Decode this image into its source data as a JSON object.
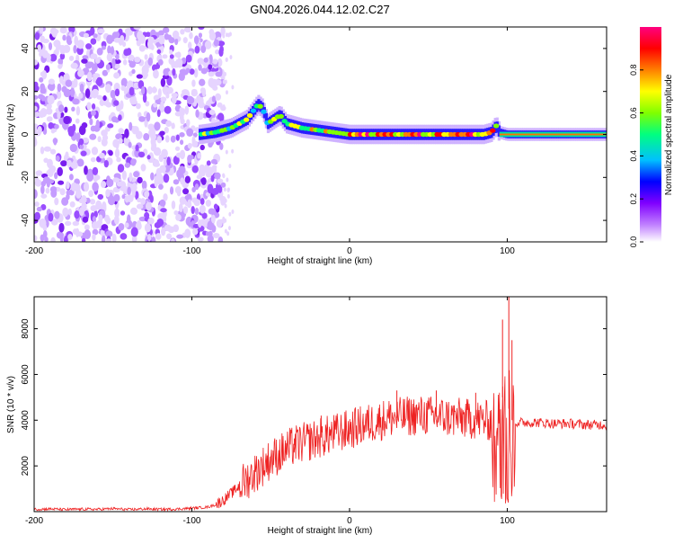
{
  "title": "GN04.2026.044.12.02.C27",
  "chart_data": [
    {
      "type": "heatmap",
      "title": "GN04.2026.044.12.02.C27",
      "xlabel": "Height of straight line (km)",
      "ylabel": "Frequency (Hz)",
      "xlim": [
        -200,
        163
      ],
      "ylim": [
        -50,
        50
      ],
      "x_ticks": [
        "-200",
        "-100",
        "0",
        "100"
      ],
      "y_ticks": [
        "40",
        "20",
        "0",
        "-20",
        "-40"
      ],
      "colorbar": {
        "label": "Normalized spectral amplitude",
        "range": [
          0,
          1
        ],
        "ticks": [
          "0.0",
          "0.2",
          "0.4",
          "0.6",
          "0.8"
        ],
        "colors": [
          "#ffffff",
          "#c080ff",
          "#8000ff",
          "#0000ff",
          "#00c0ff",
          "#00ff80",
          "#80ff00",
          "#ffff00",
          "#ff8000",
          "#ff0000",
          "#ff0080"
        ]
      },
      "trace": {
        "description_points_x": [
          -95,
          -85,
          -75,
          -65,
          -58,
          -55,
          -52,
          -48,
          -44,
          -40,
          -30,
          -20,
          -10,
          0,
          10,
          30,
          50,
          70,
          85,
          90,
          93,
          95,
          100,
          163
        ],
        "description_points_y": [
          0,
          1,
          3,
          7,
          14,
          12,
          5,
          7,
          9,
          5,
          3,
          2,
          1,
          0,
          0,
          0,
          0,
          0,
          0,
          1,
          4,
          1,
          0,
          0
        ],
        "noise_region_x": [
          -200,
          -80
        ]
      }
    },
    {
      "type": "line",
      "xlabel": "Height of straight line (km)",
      "ylabel": "SNR (10 * v/v)",
      "xlim": [
        -200,
        163
      ],
      "ylim": [
        0,
        9400
      ],
      "x_ticks": [
        "-200",
        "-100",
        "0",
        "100"
      ],
      "y_ticks": [
        "8000",
        "6000",
        "4000",
        "2000"
      ],
      "color": "#ee2222",
      "series": [
        {
          "name": "SNR",
          "x": [
            -200,
            -190,
            -180,
            -170,
            -160,
            -150,
            -140,
            -130,
            -120,
            -110,
            -100,
            -90,
            -85,
            -80,
            -75,
            -70,
            -65,
            -60,
            -55,
            -50,
            -45,
            -40,
            -35,
            -30,
            -25,
            -20,
            -15,
            -10,
            -5,
            0,
            5,
            10,
            15,
            20,
            25,
            30,
            35,
            40,
            45,
            50,
            55,
            60,
            65,
            70,
            75,
            80,
            85,
            90,
            93,
            95,
            97,
            99,
            101,
            103,
            105,
            110,
            120,
            130,
            140,
            150,
            163
          ],
          "y": [
            100,
            120,
            90,
            110,
            100,
            130,
            90,
            120,
            100,
            110,
            150,
            200,
            300,
            500,
            800,
            1100,
            1400,
            1700,
            2000,
            2300,
            2500,
            2700,
            2900,
            3000,
            3100,
            3200,
            3300,
            3400,
            3500,
            3600,
            3700,
            3800,
            3900,
            4000,
            4100,
            4100,
            4150,
            4200,
            4200,
            4200,
            4150,
            4150,
            4100,
            4100,
            4050,
            4050,
            4000,
            3950,
            4200,
            4500,
            5000,
            6500,
            4500,
            4000,
            3900,
            3900,
            3900,
            3850,
            3850,
            3800,
            3800
          ]
        }
      ],
      "spikes": [
        {
          "x": -35,
          "y": 3200
        },
        {
          "x": -18,
          "y": 4200
        },
        {
          "x": 30,
          "y": 5300
        },
        {
          "x": 55,
          "y": 5300
        },
        {
          "x": 80,
          "y": 5200
        },
        {
          "x": 97,
          "y": 8400
        },
        {
          "x": 101,
          "y": 9400
        },
        {
          "x": 103,
          "y": 7500
        }
      ]
    }
  ]
}
